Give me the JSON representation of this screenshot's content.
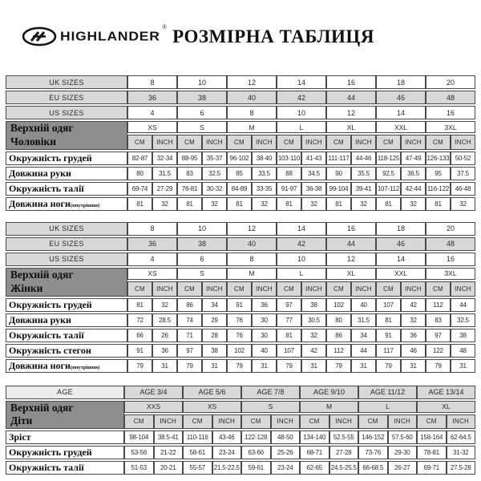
{
  "page": {
    "title": "РОЗМІРНА ТАБЛИЦЯ",
    "brand": "HIGHLANDER",
    "registered_mark": "®"
  },
  "colors": {
    "cell_gray": "#d8d8d8",
    "cell_light": "#ececec",
    "group_dark": "#8e8e8e",
    "border": "#4a4a4a",
    "text": "#1d1d1d"
  },
  "units": [
    "CM",
    "INCH"
  ],
  "tables": {
    "men": {
      "size_rows": [
        {
          "label": "UK SIZES",
          "shaded": false,
          "values": [
            "8",
            "10",
            "12",
            "14",
            "16",
            "18",
            "20"
          ]
        },
        {
          "label": "EU SIZES",
          "shaded": true,
          "values": [
            "36",
            "38",
            "40",
            "42",
            "44",
            "46",
            "48"
          ]
        },
        {
          "label": "US SIZES",
          "shaded": false,
          "values": [
            "4",
            "6",
            "8",
            "10",
            "12",
            "14",
            "16"
          ]
        }
      ],
      "group_label": [
        "Верхній одяг",
        "Чоловіки"
      ],
      "sizes": [
        "XS",
        "S",
        "M",
        "L",
        "XL",
        "XXL",
        "3XL"
      ],
      "rows": [
        {
          "label": "Окружність грудей",
          "sub": "",
          "values": [
            "82-87",
            "32-34",
            "88-95",
            "35-37",
            "96-102",
            "38-40",
            "103-110",
            "41-43",
            "111-117",
            "44-46",
            "118-125",
            "47-49",
            "126-133",
            "50-52"
          ]
        },
        {
          "label": "Довжина руки",
          "sub": "",
          "values": [
            "80",
            "31.5",
            "83",
            "32.5",
            "85",
            "33.5",
            "88",
            "34.5",
            "90",
            "35.5",
            "92.5",
            "36.5",
            "95",
            "37.5"
          ]
        },
        {
          "label": "Окружність талії",
          "sub": "",
          "values": [
            "69-74",
            "27-29",
            "76-81",
            "30-32",
            "84-89",
            "33-35",
            "91-97",
            "36-38",
            "99-104",
            "39-41",
            "107-112",
            "42-44",
            "116-122",
            "46-48"
          ]
        },
        {
          "label": "Довжина ноги",
          "sub": "(внутрішня)",
          "values": [
            "81",
            "32",
            "81",
            "32",
            "81",
            "32",
            "81",
            "32",
            "81",
            "32",
            "81",
            "32",
            "81",
            "32"
          ]
        }
      ]
    },
    "women": {
      "size_rows": [
        {
          "label": "UK SIZES",
          "shaded": false,
          "values": [
            "8",
            "10",
            "12",
            "14",
            "16",
            "18",
            "20"
          ]
        },
        {
          "label": "EU SIZES",
          "shaded": true,
          "values": [
            "36",
            "38",
            "40",
            "42",
            "44",
            "46",
            "48"
          ]
        },
        {
          "label": "US SIZES",
          "shaded": false,
          "values": [
            "4",
            "6",
            "8",
            "10",
            "12",
            "14",
            "16"
          ]
        }
      ],
      "group_label": [
        "Верхній одяг",
        "Жінки"
      ],
      "sizes": [
        "XS",
        "S",
        "M",
        "L",
        "XL",
        "XXL",
        "3XL"
      ],
      "rows": [
        {
          "label": "Окружність грудей",
          "sub": "",
          "values": [
            "81",
            "32",
            "86",
            "34",
            "91",
            "36",
            "97",
            "38",
            "102",
            "40",
            "107",
            "42",
            "112",
            "44"
          ]
        },
        {
          "label": "Довжина руки",
          "sub": "",
          "values": [
            "72",
            "28.5",
            "74",
            "29",
            "76",
            "30",
            "77",
            "30.5",
            "80",
            "31.5",
            "81",
            "32",
            "83",
            "32.5"
          ]
        },
        {
          "label": "Окружність талії",
          "sub": "",
          "values": [
            "66",
            "26",
            "71",
            "28",
            "76",
            "30",
            "81",
            "32",
            "86",
            "34",
            "91",
            "36",
            "97",
            "38"
          ]
        },
        {
          "label": "Окружність стегон",
          "sub": "",
          "values": [
            "91",
            "36",
            "97",
            "38",
            "102",
            "40",
            "107",
            "42",
            "112",
            "44",
            "117",
            "46",
            "122",
            "48"
          ]
        },
        {
          "label": "Довжина ноги",
          "sub": "(внутрішня)",
          "values": [
            "79",
            "31",
            "79",
            "31",
            "79",
            "31",
            "79",
            "31",
            "79",
            "31",
            "79",
            "31",
            "79",
            "31"
          ]
        }
      ]
    },
    "kids": {
      "age_row": {
        "label": "AGE",
        "values": [
          "AGE 3/4",
          "AGE 5/6",
          "AGE 7/8",
          "AGE 9/10",
          "AGE 11/12",
          "AGE 13/14"
        ]
      },
      "group_label": [
        "Верхній одяг",
        "Діти"
      ],
      "sizes": [
        "XXS",
        "XS",
        "S",
        "M",
        "L",
        "XL"
      ],
      "rows": [
        {
          "label": "Зріст",
          "sub": "",
          "values": [
            "98-104",
            "38.5-41",
            "110-116",
            "43-46",
            "122-128",
            "48-50",
            "134-140",
            "52.5-55",
            "146-152",
            "57.5-60",
            "158-164",
            "62-64.5"
          ]
        },
        {
          "label": "Окружність грудей",
          "sub": "",
          "values": [
            "53-56",
            "21-22",
            "58-61",
            "23-24",
            "63-66",
            "25-26",
            "68-71",
            "27-28",
            "73-76",
            "29-30",
            "78-81",
            "31-32"
          ]
        },
        {
          "label": "Окружність талії",
          "sub": "",
          "values": [
            "51-53",
            "20-21",
            "55-57",
            "21.5-22.5",
            "59-61",
            "23-24",
            "62-65",
            "24.5-25.5",
            "66-68.5",
            "26-27",
            "69-71",
            "27.5-28"
          ]
        }
      ]
    }
  }
}
